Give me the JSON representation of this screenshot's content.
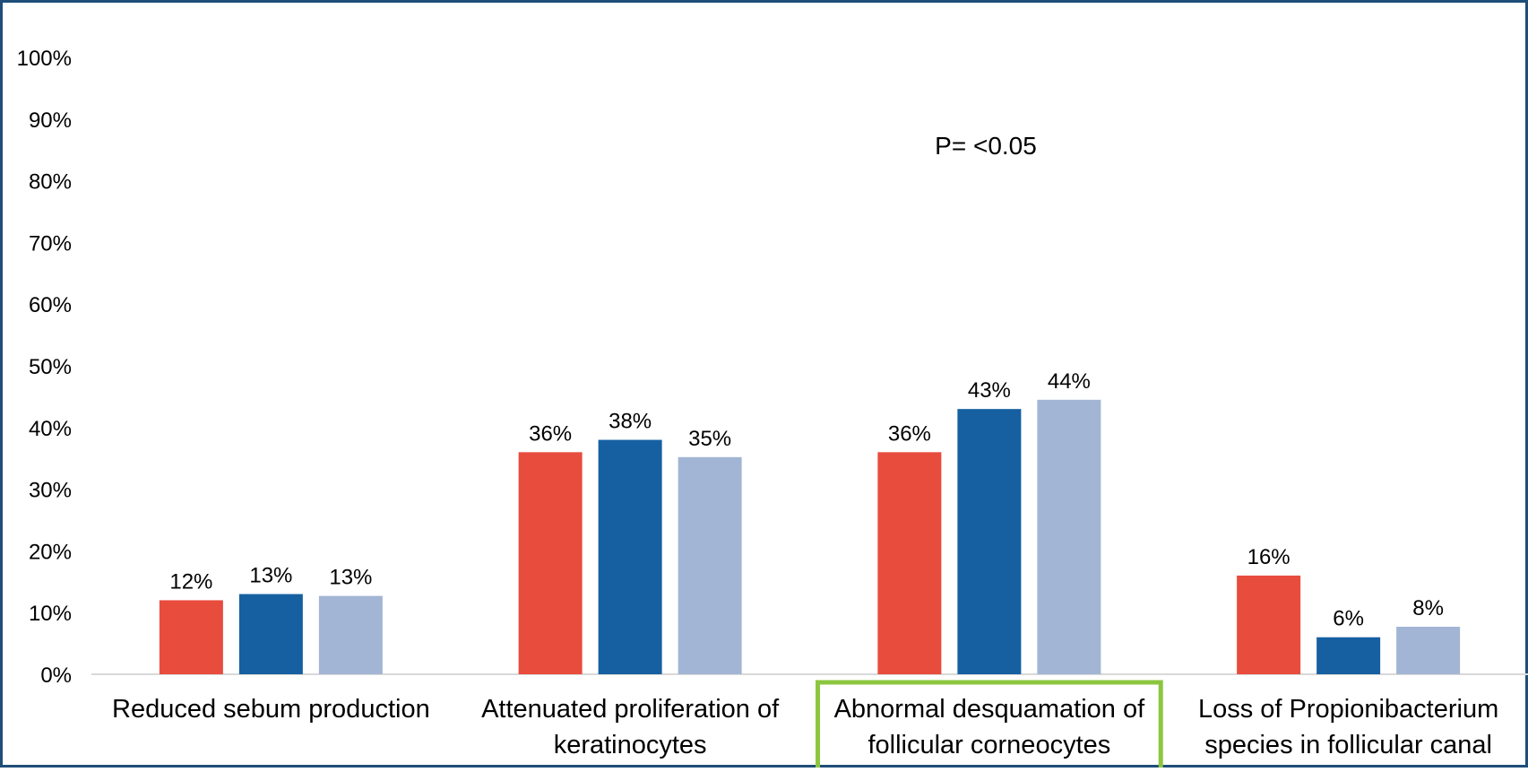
{
  "chart_data": {
    "type": "bar",
    "title": "",
    "xlabel": "",
    "ylabel": "",
    "ylim": [
      0,
      1
    ],
    "yticks": [
      "0%",
      "10%",
      "20%",
      "30%",
      "40%",
      "50%",
      "60%",
      "70%",
      "80%",
      "90%",
      "100%"
    ],
    "categories": [
      [
        "Reduced sebum production"
      ],
      [
        "Attenuated proliferation of",
        "keratinocytes"
      ],
      [
        "Abnormal desquamation of",
        "follicular corneocytes"
      ],
      [
        "Loss of Propionibacterium",
        "species in follicular canal"
      ]
    ],
    "series": [
      {
        "color": "#e84c3d",
        "values": [
          0.12,
          0.36,
          0.36,
          0.16
        ],
        "labels": [
          "12%",
          "36%",
          "36%",
          "16%"
        ]
      },
      {
        "color": "#1660a1",
        "values": [
          0.13,
          0.38,
          0.43,
          0.06
        ],
        "labels": [
          "13%",
          "38%",
          "43%",
          "6%"
        ]
      },
      {
        "color": "#a3b5d4",
        "values": [
          0.127,
          0.352,
          0.445,
          0.077
        ],
        "labels": [
          "13%",
          "35%",
          "44%",
          "8%"
        ]
      }
    ],
    "highlighted_category": 2,
    "highlight_color": "#8cc63f",
    "annotation": "P= <0.05",
    "grid": false,
    "legend": "none"
  }
}
